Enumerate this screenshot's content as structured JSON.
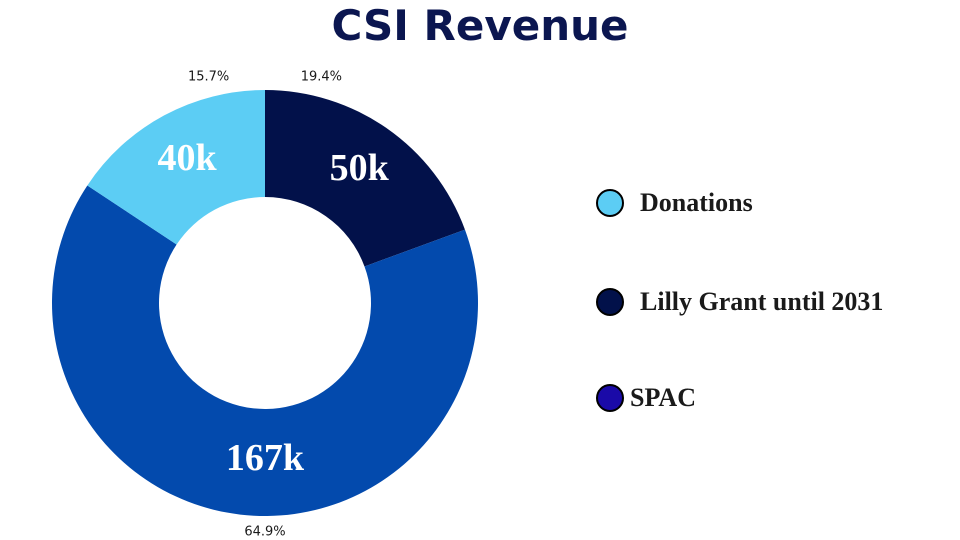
{
  "chart_data": {
    "type": "pie",
    "variant": "donut",
    "title": "CSI Revenue",
    "slices": [
      {
        "name": "Lilly Grant until 2031",
        "value_label": "50k",
        "percent_label": "19.4%",
        "percent": 19.4,
        "color": "#02114a"
      },
      {
        "name": "SPAC",
        "value_label": "167k",
        "percent_label": "64.9%",
        "percent": 64.9,
        "color": "#034aad"
      },
      {
        "name": "Donations",
        "value_label": "40k",
        "percent_label": "15.7%",
        "percent": 15.7,
        "color": "#5ccdf4"
      }
    ],
    "legend": [
      {
        "label": "Donations",
        "color": "#5ccdf4"
      },
      {
        "label": "Lilly Grant until 2031",
        "color": "#02114a"
      },
      {
        "label": "SPAC",
        "color": "#1a0aa8"
      }
    ],
    "legend_position": "right"
  }
}
